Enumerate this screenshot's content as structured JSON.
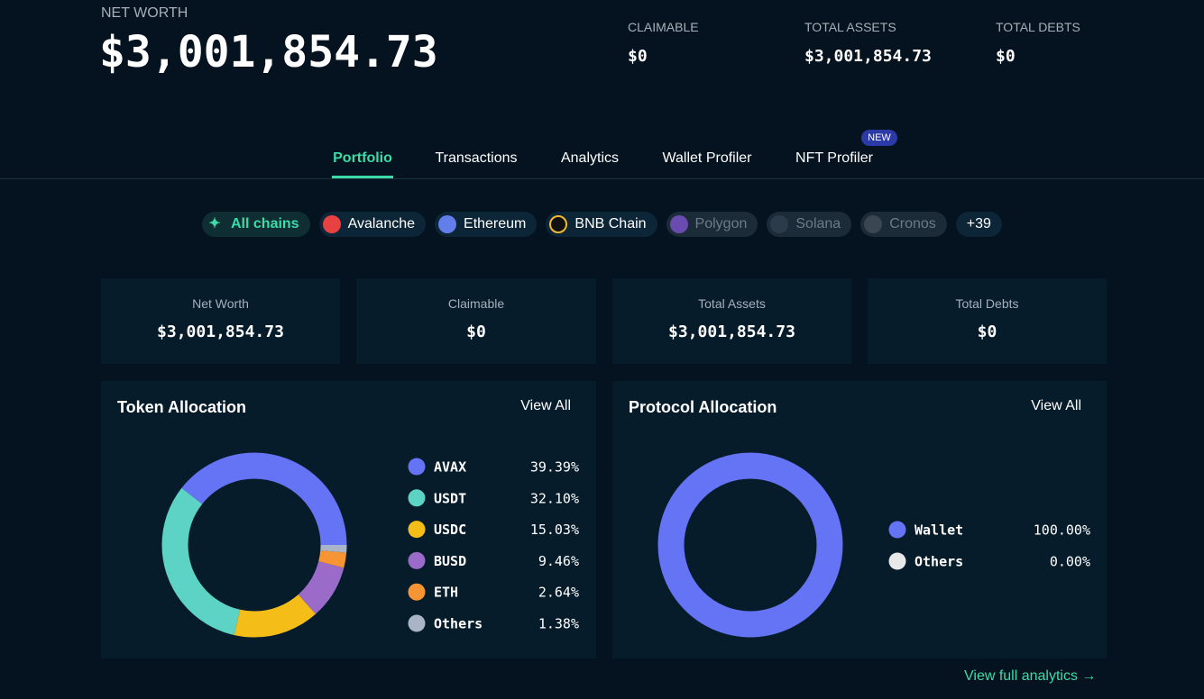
{
  "header": {
    "net_worth_label": "NET WORTH",
    "net_worth": "$3,001,854.73",
    "stats": [
      {
        "label": "CLAIMABLE",
        "value": "$0"
      },
      {
        "label": "TOTAL ASSETS",
        "value": "$3,001,854.73"
      },
      {
        "label": "TOTAL DEBTS",
        "value": "$0"
      }
    ]
  },
  "tabs": [
    "Portfolio",
    "Transactions",
    "Analytics",
    "Wallet Profiler",
    "NFT Profiler"
  ],
  "new_badge": "NEW",
  "chains": [
    "All chains",
    "Avalanche",
    "Ethereum",
    "BNB Chain",
    "Polygon",
    "Solana",
    "Cronos",
    "+39"
  ],
  "summary_cards": [
    {
      "label": "Net Worth",
      "value": "$3,001,854.73"
    },
    {
      "label": "Claimable",
      "value": "$0"
    },
    {
      "label": "Total Assets",
      "value": "$3,001,854.73"
    },
    {
      "label": "Total Debts",
      "value": "$0"
    }
  ],
  "token_allocation": {
    "title": "Token Allocation",
    "view_all": "View All",
    "items": [
      {
        "name": "AVAX",
        "value": 39.39,
        "label": "39.39%",
        "color": "#6573f5"
      },
      {
        "name": "USDT",
        "value": 32.1,
        "label": "32.10%",
        "color": "#5dd3c5"
      },
      {
        "name": "USDC",
        "value": 15.03,
        "label": "15.03%",
        "color": "#f5bd18"
      },
      {
        "name": "BUSD",
        "value": 9.46,
        "label": "9.46%",
        "color": "#9b6bc9"
      },
      {
        "name": "ETH",
        "value": 2.64,
        "label": "2.64%",
        "color": "#f79433"
      },
      {
        "name": "Others",
        "value": 1.38,
        "label": "1.38%",
        "color": "#aab4c8"
      }
    ]
  },
  "protocol_allocation": {
    "title": "Protocol Allocation",
    "view_all": "View All",
    "items": [
      {
        "name": "Wallet",
        "value": 100.0,
        "label": "100.00%",
        "color": "#6573f5"
      },
      {
        "name": "Others",
        "value": 0.0,
        "label": "0.00%",
        "color": "#e8e8e8"
      }
    ]
  },
  "footer_link": "View full analytics"
}
